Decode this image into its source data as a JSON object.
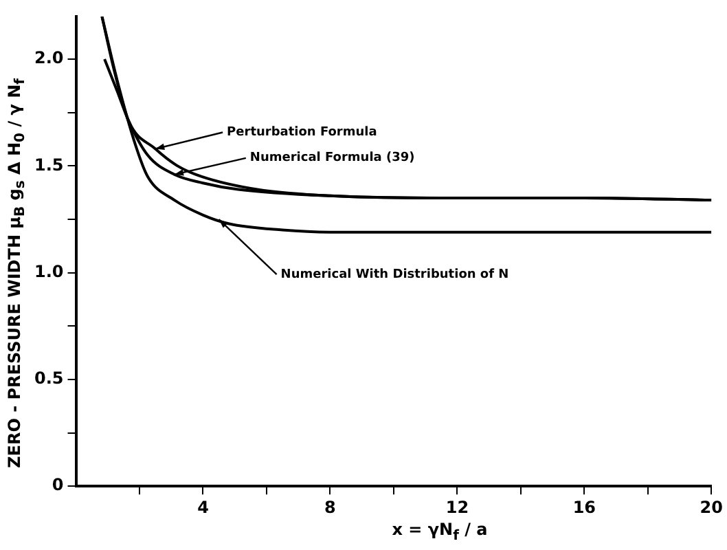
{
  "chart_data": {
    "type": "line",
    "xlabel": "x = γN$_{f}$ / a",
    "ylabel": "ZERO - PRESSURE WIDTH  μ$_{B}$ g$_{s}$ Δ H$_{0}$ / γ N$_{f}$",
    "xlim": [
      0,
      20
    ],
    "xticks": [
      {
        "value": 2,
        "label": null
      },
      4,
      {
        "value": 6,
        "label": null
      },
      8,
      {
        "value": 10,
        "label": null
      },
      12,
      {
        "value": 14,
        "label": null
      },
      16,
      {
        "value": 18,
        "label": null
      },
      20
    ],
    "ylim": [
      0,
      2.2
    ],
    "yticks": [
      0,
      {
        "value": 0.25,
        "label": null
      },
      0.5,
      {
        "value": 0.75,
        "label": null
      },
      {
        "value": 1,
        "label": "1.0"
      },
      {
        "value": 1.25,
        "label": null
      },
      1.5,
      {
        "value": 1.75,
        "label": null
      },
      {
        "value": 2,
        "label": "2.0"
      }
    ],
    "grid": false,
    "legend": false,
    "marker": "none",
    "line_style": "solid",
    "series": [
      {
        "color": "#000000",
        "x": [
          0.82,
          1.2,
          1.66,
          2.5,
          3.2,
          3.96,
          5.7,
          8,
          12,
          16,
          20
        ],
        "values": [
          2.2,
          1.95,
          1.71,
          1.58,
          1.5,
          1.45,
          1.39,
          1.36,
          1.35,
          1.35,
          1.34
        ]
      },
      {
        "color": "#000000",
        "x": [
          0.9,
          1.3,
          1.66,
          2.26,
          3.1,
          4,
          5.1,
          8,
          12,
          16,
          20
        ],
        "values": [
          2,
          1.85,
          1.71,
          1.55,
          1.46,
          1.42,
          1.39,
          1.36,
          1.35,
          1.35,
          1.34
        ]
      },
      {
        "color": "#000000",
        "x": [
          0.82,
          1.3,
          1.87,
          2.26,
          3.1,
          4,
          4.8,
          6.5,
          8,
          12,
          16,
          20
        ],
        "values": [
          2.2,
          1.9,
          1.6,
          1.45,
          1.34,
          1.27,
          1.23,
          1.2,
          1.19,
          1.19,
          1.19,
          1.19
        ]
      }
    ],
    "annotations": [
      {
        "text": "Perturbation Formula",
        "x": 2.5,
        "y": 1.58
      },
      {
        "text": "Numerical Formula (39)",
        "x": 3.1,
        "y": 1.46
      },
      {
        "text": "Numerical With Distribution of N",
        "x": 4.5,
        "y": 1.25
      }
    ]
  }
}
